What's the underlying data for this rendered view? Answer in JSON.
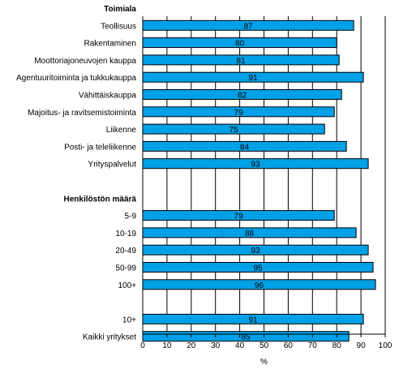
{
  "chart_data": {
    "type": "bar",
    "orientation": "horizontal",
    "xlabel": "%",
    "xlim": [
      0,
      100
    ],
    "xticks": [
      0,
      10,
      20,
      30,
      40,
      50,
      60,
      70,
      80,
      90,
      100
    ],
    "grid": "vertical lines",
    "bar_color": "#00a0e6",
    "bar_outline": "#000000",
    "rows": [
      {
        "kind": "header",
        "label": "Toimiala"
      },
      {
        "kind": "bar",
        "label": "Teollisuus",
        "value": 87
      },
      {
        "kind": "bar",
        "label": "Rakentaminen",
        "value": 80
      },
      {
        "kind": "bar",
        "label": "Moottoriajoneuvojen kauppa",
        "value": 81
      },
      {
        "kind": "bar",
        "label": "Agentuuritoiminta ja tukkukauppa",
        "value": 91
      },
      {
        "kind": "bar",
        "label": "Vähittäiskauppa",
        "value": 82
      },
      {
        "kind": "bar",
        "label": "Majoitus- ja ravitsemistoiminta",
        "value": 79
      },
      {
        "kind": "bar",
        "label": "Liikenne",
        "value": 75
      },
      {
        "kind": "bar",
        "label": "Posti- ja teleliikenne",
        "value": 84
      },
      {
        "kind": "bar",
        "label": "Yrityspalvelut",
        "value": 93
      },
      {
        "kind": "gap"
      },
      {
        "kind": "header",
        "label": "Henkilöstön määrä"
      },
      {
        "kind": "bar",
        "label": "5-9",
        "value": 79
      },
      {
        "kind": "bar",
        "label": "10-19",
        "value": 88
      },
      {
        "kind": "bar",
        "label": "20-49",
        "value": 93
      },
      {
        "kind": "bar",
        "label": "50-99",
        "value": 95
      },
      {
        "kind": "bar",
        "label": "100+",
        "value": 96
      },
      {
        "kind": "gap"
      },
      {
        "kind": "bar",
        "label": "10+",
        "value": 91
      },
      {
        "kind": "bar",
        "label": "Kaikki yritykset",
        "value": 85
      }
    ]
  }
}
